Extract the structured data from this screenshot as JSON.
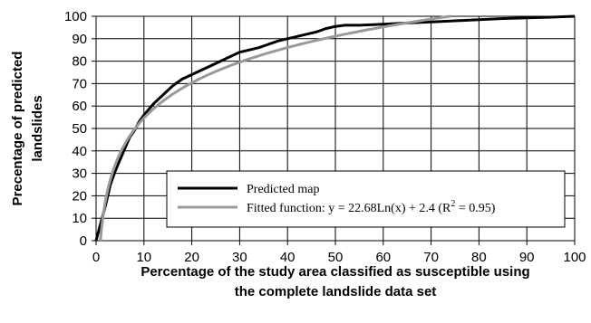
{
  "chart_data": {
    "type": "line",
    "xlabel_line1": "Percentage of the study area classified as susceptible using",
    "xlabel_line2": "the complete landslide data set",
    "ylabel_line1": "Precentage of predicted",
    "ylabel_line2": "landslides",
    "xlim": [
      0,
      100
    ],
    "ylim": [
      0,
      100
    ],
    "xticks": [
      "0",
      "10",
      "20",
      "30",
      "40",
      "50",
      "60",
      "70",
      "80",
      "90",
      "100"
    ],
    "yticks": [
      "0",
      "10",
      "20",
      "30",
      "40",
      "50",
      "60",
      "70",
      "80",
      "90",
      "100"
    ],
    "grid": true,
    "legend_position": "bottom-right",
    "series": [
      {
        "name": "Predicted map",
        "color": "#000000",
        "x": [
          0,
          0.5,
          1,
          2,
          3,
          4,
          5,
          6,
          7,
          8,
          9,
          10,
          12,
          14,
          16,
          18,
          20,
          22,
          24,
          26,
          28,
          30,
          32,
          34,
          36,
          38,
          40,
          42,
          44,
          46,
          48,
          50,
          52,
          55,
          58,
          60,
          65,
          70,
          75,
          80,
          85,
          90,
          95,
          100
        ],
        "y": [
          0,
          4,
          8,
          16,
          25,
          31,
          36,
          41,
          46,
          49,
          53,
          56,
          61,
          65,
          69,
          72,
          74,
          76,
          78,
          80,
          82,
          84,
          85,
          86,
          87.5,
          89,
          90,
          91,
          92,
          93,
          94.5,
          95.5,
          96,
          96,
          96.3,
          96.5,
          97,
          97.5,
          98,
          98.5,
          99,
          99.3,
          99.6,
          100
        ]
      },
      {
        "name": "Fitted function: y = 22.68Ln(x) + 2.4 (R",
        "name_sup": "2",
        "name_tail": " = 0.95)",
        "color": "#999999",
        "equation": {
          "a": 22.68,
          "b": 2.4
        }
      }
    ]
  }
}
